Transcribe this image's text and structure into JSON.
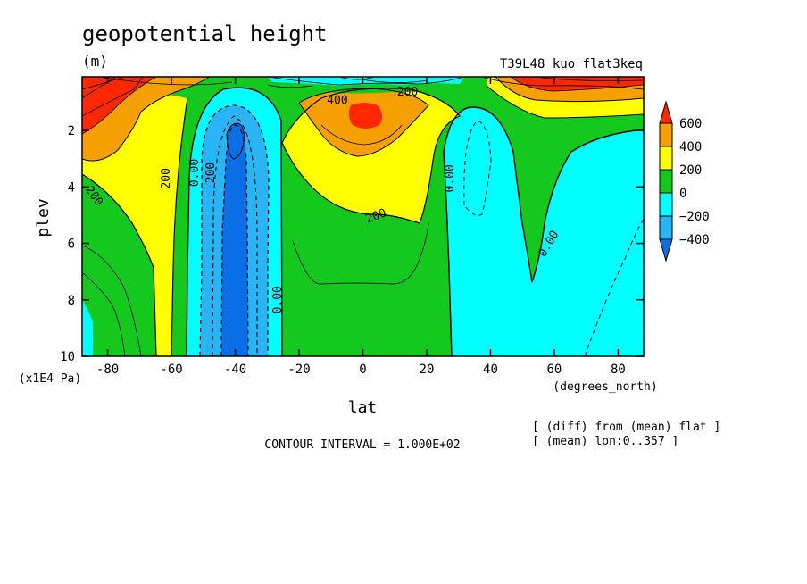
{
  "chart_data": {
    "type": "heatmap",
    "title": "geopotential height",
    "units": "(m)",
    "run_label": "T39L48_kuo_flat3keq",
    "xlabel": "lat",
    "xunits": "(degrees_north)",
    "ylabel": "plev",
    "yunits": "(x1E4 Pa)",
    "xlim": [
      -88,
      88
    ],
    "ylim": [
      10,
      0.1
    ],
    "y_inverted": true,
    "xticks": [
      -80,
      -60,
      -40,
      -20,
      0,
      20,
      40,
      60,
      80
    ],
    "yticks": [
      2,
      4,
      6,
      8,
      10
    ],
    "contour_interval_text": "CONTOUR INTERVAL = 1.000E+02",
    "notes": [
      "[ (diff) from (mean) flat ]",
      "[ (mean) lon:0..357 ]"
    ],
    "colorbar": {
      "labels": [
        "600",
        "400",
        "200",
        "0",
        "−200",
        "−400"
      ],
      "levels": [
        -400,
        -200,
        0,
        200,
        400,
        600
      ],
      "colors": [
        "#0a6fe6",
        "#28b4f5",
        "#00ffff",
        "#14c81e",
        "#ffff00",
        "#f5a000",
        "#ff2800"
      ]
    },
    "contour_labels": [
      {
        "text": "200",
        "lat": -84,
        "p": 4.3,
        "rot": 55
      },
      {
        "text": "200",
        "lat": -62,
        "p": 3.7,
        "rot": -90
      },
      {
        "text": "200",
        "lat": -48,
        "p": 3.5,
        "rot": -90
      },
      {
        "text": "0.00",
        "lat": -53,
        "p": 3.5,
        "rot": -90
      },
      {
        "text": "0.00",
        "lat": -27,
        "p": 8.0,
        "rot": -90
      },
      {
        "text": "200",
        "lat": 4,
        "p": 5.0,
        "rot": -20
      },
      {
        "text": "400",
        "lat": -8,
        "p": 0.9,
        "rot": 0
      },
      {
        "text": "200",
        "lat": 14,
        "p": 0.6,
        "rot": 0
      },
      {
        "text": "0.00",
        "lat": 27,
        "p": 3.7,
        "rot": -90
      },
      {
        "text": "0.00",
        "lat": 58,
        "p": 6.0,
        "rot": -60
      }
    ],
    "grid": false
  }
}
